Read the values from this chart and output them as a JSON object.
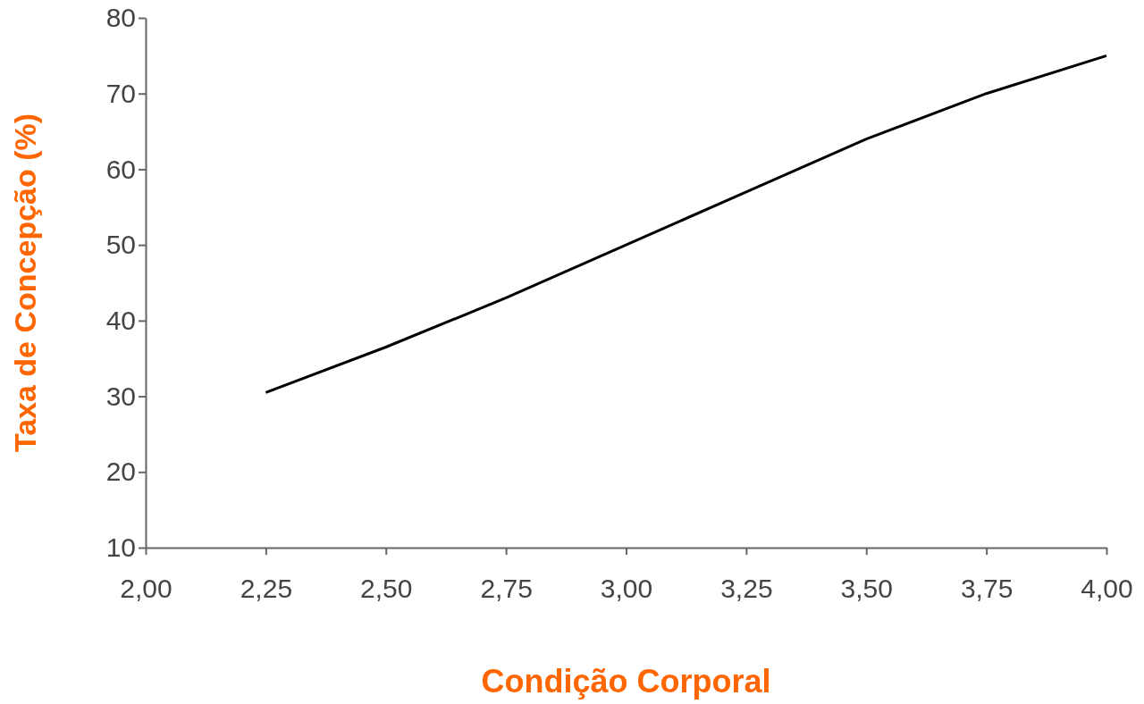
{
  "chart_data": {
    "type": "line",
    "xlabel": "Condição Corporal",
    "ylabel": "Taxa de Concepção (%)",
    "x": [
      2.25,
      2.5,
      2.75,
      3.0,
      3.25,
      3.5,
      3.75,
      4.0
    ],
    "series": [
      {
        "color": "#000000",
        "values": [
          30.5,
          36.5,
          43,
          50,
          57,
          64,
          70,
          75
        ]
      }
    ],
    "xlim": [
      2,
      4
    ],
    "xticks": [
      {
        "value": 2,
        "label": "2,00"
      },
      {
        "value": 2.25,
        "label": "2,25"
      },
      {
        "value": 2.5,
        "label": "2,50"
      },
      {
        "value": 2.75,
        "label": "2,75"
      },
      {
        "value": 3,
        "label": "3,00"
      },
      {
        "value": 3.25,
        "label": "3,25"
      },
      {
        "value": 3.5,
        "label": "3,50"
      },
      {
        "value": 3.75,
        "label": "3,75"
      },
      {
        "value": 4,
        "label": "4,00"
      }
    ],
    "ylim": [
      10,
      80
    ],
    "yticks": [
      10,
      20,
      30,
      40,
      50,
      60,
      70,
      80
    ],
    "grid": false,
    "marker": "none",
    "line_style": "solid"
  }
}
